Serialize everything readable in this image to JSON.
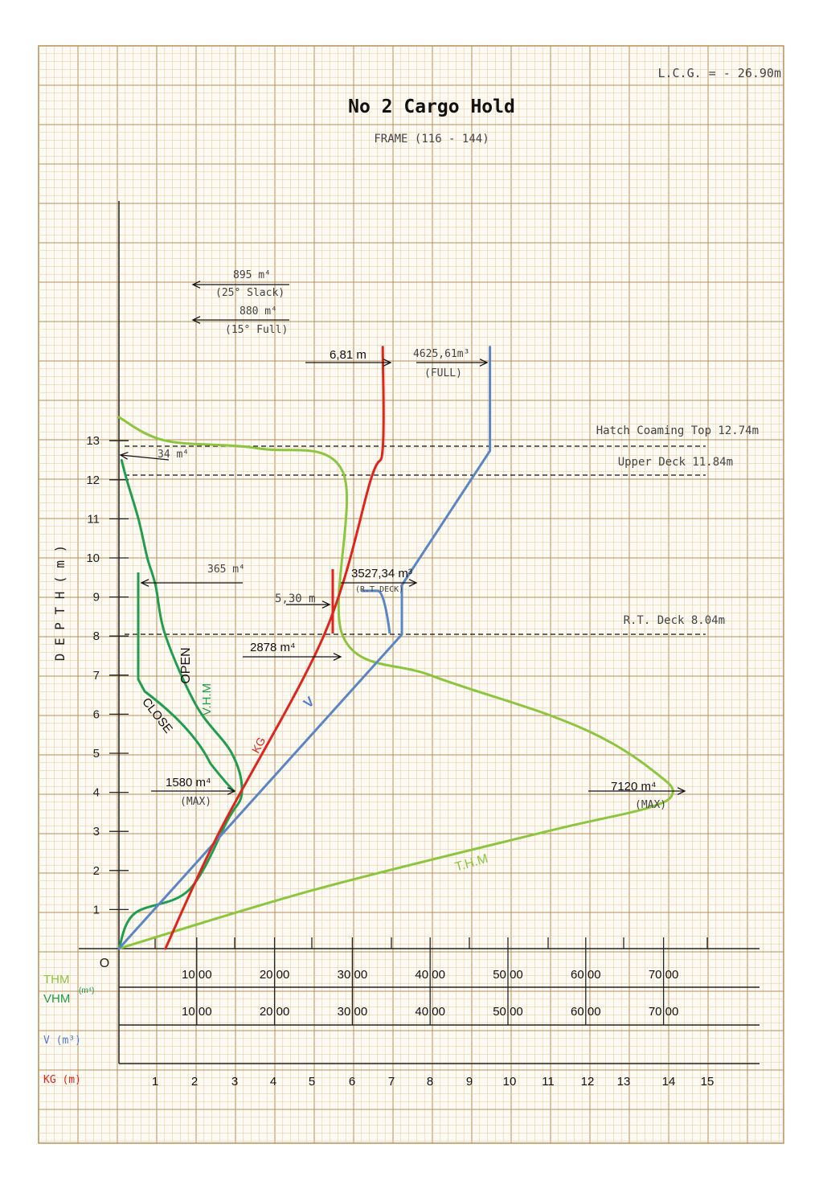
{
  "header": {
    "lcg": "L.C.G. = - 26.90m",
    "title": "No 2 Cargo Hold",
    "subtitle": "FRAME (116 - 144)"
  },
  "axis": {
    "ylabel": "D E P T H ( m )",
    "origin_label": "O",
    "depth_ticks": [
      "1",
      "2",
      "3",
      "4",
      "5",
      "6",
      "7",
      "8",
      "9",
      "10",
      "11",
      "12",
      "13"
    ],
    "depth_range": [
      0,
      13
    ],
    "thm_label": "THM",
    "vhm_label": "VHM",
    "moment_unit": "(m⁴)",
    "v_label": "V (m³)",
    "kg_label": "KG (m)",
    "thm_ticks": [
      "10 00",
      "20 00",
      "30 00",
      "40 00",
      "50 00",
      "60 00",
      "70 00"
    ],
    "vhm_ticks": [
      "10 00",
      "20 00",
      "30 00",
      "40 00",
      "50 00",
      "60 00",
      "70 00"
    ],
    "kg_ticks": [
      "1",
      "2",
      "3",
      "4",
      "5",
      "6",
      "7",
      "8",
      "9",
      "10",
      "11",
      "12",
      "13",
      "14",
      "15"
    ]
  },
  "reference_lines": [
    {
      "label": "Hatch Coaming Top 12.74m",
      "depth": 12.74
    },
    {
      "label": "Upper Deck 11.84m",
      "depth": 11.84
    },
    {
      "label": "R.T. Deck 8.04m",
      "depth": 8.04
    }
  ],
  "annotations": {
    "vhm_slack_value": "895 m⁴",
    "vhm_slack_note": "(25° Slack)",
    "vhm_full_value": "880 m⁴",
    "vhm_full_note": "(15° Full)",
    "kg_full": "6,81 m",
    "v_full_value": "4625,61m³",
    "v_full_note": "(FULL)",
    "vhm_top": "34 m⁴",
    "vhm_mid": "365 m⁴",
    "v_rt_value": "3527,34 m³",
    "v_rt_note": "(R.T DECK)",
    "kg_rt": "5,30 m",
    "thm_rt": "2878 m⁴",
    "vhm_max_value": "1580 m⁴",
    "vhm_max_note": "(MAX)",
    "thm_max_value": "7120 m⁴",
    "thm_max_note": "(MAX)",
    "curve_open": "OPEN",
    "curve_close": "CLOSE",
    "curve_vhm": "V.H.M",
    "curve_v": "V",
    "curve_kg": "KG",
    "curve_thm": "T.H.M"
  },
  "colors": {
    "grid_minor": "#e0c79b",
    "grid_major": "#b8905a",
    "thm": "#8cc63f",
    "vhm": "#1f9e4f",
    "v": "#5b86c5",
    "kg": "#e0231b",
    "v_label": "#4f7fd0",
    "kg_label": "#e0231b"
  },
  "chart_data": {
    "type": "line",
    "y_axis": "depth (m)",
    "series": [
      {
        "name": "T.H.M",
        "unit": "m⁴",
        "x": [
          0,
          600,
          1800,
          2878,
          2878,
          4000,
          5500,
          6300,
          6900,
          7120,
          6800,
          5500,
          2500,
          0
        ],
        "depth": [
          13.6,
          13.0,
          12.8,
          12.2,
          8.0,
          7.0,
          6.0,
          5.3,
          4.5,
          4.0,
          3.6,
          3.0,
          1.5,
          0
        ]
      },
      {
        "name": "V.H.M",
        "unit": "m⁴",
        "x": [
          34,
          100,
          250,
          365,
          470,
          600,
          1000,
          1450,
          1580,
          1400,
          900,
          200,
          0
        ],
        "depth": [
          12.5,
          12.0,
          11.0,
          10.0,
          9.3,
          8.0,
          6.2,
          5.0,
          4.0,
          3.3,
          1.5,
          0.9,
          0
        ]
      },
      {
        "name": "V",
        "unit": "m³",
        "x": [
          0,
          3527.34,
          3527.34,
          4625.61,
          4625.61
        ],
        "depth": [
          0,
          8.04,
          9.3,
          12.74,
          15.4
        ]
      },
      {
        "name": "KG",
        "unit": "m",
        "x": [
          1.2,
          2.6,
          5.3,
          6.5,
          6.81,
          6.81
        ],
        "depth": [
          0,
          3.0,
          8.04,
          12.0,
          12.8,
          15.4
        ]
      }
    ],
    "reference_lines": [
      12.74,
      11.84,
      8.04
    ]
  }
}
